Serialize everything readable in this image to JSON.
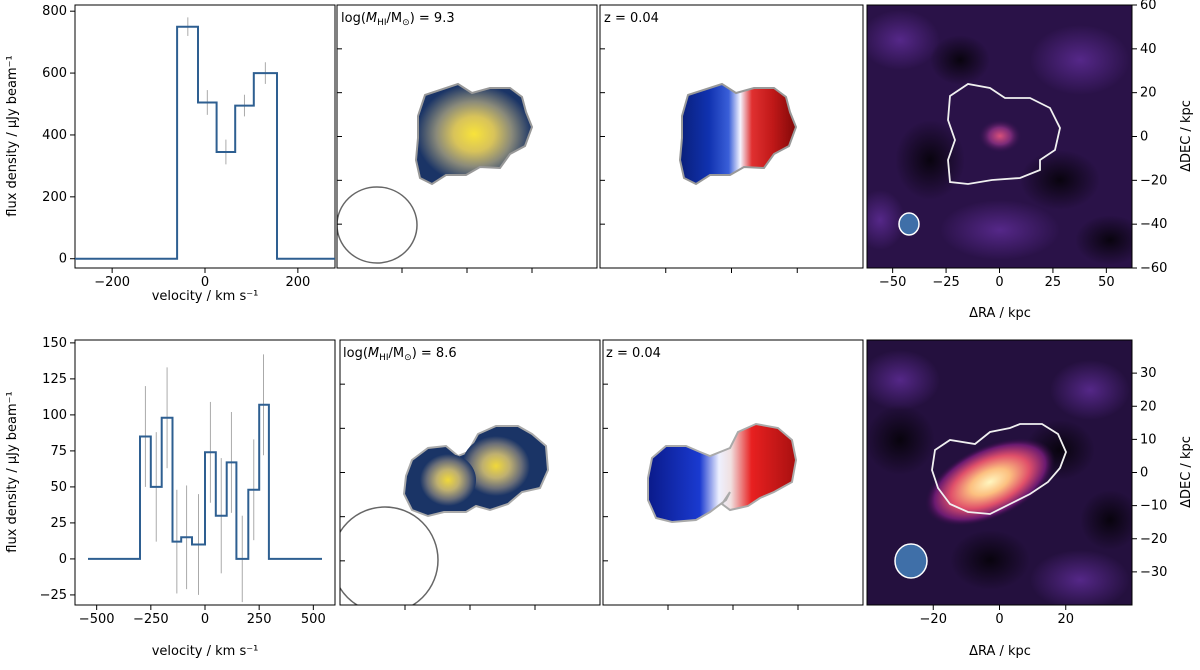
{
  "rows": [
    {
      "spectrum": {
        "type": "line",
        "step": true,
        "xlabel": "velocity / km s⁻¹",
        "ylabel": "flux density / μJy beam⁻¹",
        "xlim": [
          -280,
          280
        ],
        "ylim": [
          -30,
          820
        ],
        "xticks": [
          -200,
          0,
          200
        ],
        "yticks": [
          0,
          200,
          400,
          600,
          800
        ],
        "line_color": "#2e5f91",
        "error_color": "#aaaaaa",
        "x": [
          -280,
          -60,
          -60,
          -15,
          -15,
          25,
          25,
          65,
          65,
          105,
          105,
          155,
          155,
          280
        ],
        "y": [
          0,
          0,
          750,
          750,
          505,
          505,
          345,
          345,
          495,
          495,
          600,
          600,
          0,
          0
        ],
        "errors": [
          {
            "x": -37,
            "y": 750,
            "err": 30
          },
          {
            "x": 5,
            "y": 505,
            "err": 40
          },
          {
            "x": 45,
            "y": 345,
            "err": 40
          },
          {
            "x": 85,
            "y": 495,
            "err": 35
          },
          {
            "x": 130,
            "y": 600,
            "err": 35
          }
        ]
      },
      "moment0_label": "log(Mₕᵢ/M⊙) = 9.3",
      "moment0_parts": {
        "pre": "log(",
        "M": "M",
        "sub": "HI",
        "mid": "/M",
        "sun": "⊙",
        "post": ") = 9.3"
      },
      "moment1_label": "z = 0.04",
      "optical": {
        "xlabel": "ΔRA / kpc",
        "ylabel": "ΔDEC / kpc",
        "xlim": [
          -62,
          62
        ],
        "ylim": [
          -60,
          60
        ],
        "xticks": [
          -50,
          -25,
          0,
          25,
          50
        ],
        "yticks": [
          -60,
          -40,
          -20,
          0,
          20,
          40,
          60
        ]
      }
    },
    {
      "spectrum": {
        "type": "line",
        "step": true,
        "xlabel": "velocity / km s⁻¹",
        "ylabel": "flux density / μJy beam⁻¹",
        "xlim": [
          -600,
          600
        ],
        "ylim": [
          -32,
          152
        ],
        "xticks": [
          -500,
          -250,
          0,
          250,
          500
        ],
        "yticks": [
          -25,
          0,
          25,
          50,
          75,
          100,
          125,
          150
        ],
        "line_color": "#2e5f91",
        "error_color": "#aaaaaa",
        "x": [
          -540,
          -300,
          -300,
          -250,
          -250,
          -200,
          -200,
          -150,
          -150,
          -110,
          -110,
          -60,
          -60,
          0,
          0,
          50,
          50,
          100,
          100,
          145,
          145,
          200,
          200,
          250,
          250,
          295,
          295,
          540
        ],
        "y": [
          0,
          0,
          85,
          85,
          50,
          50,
          98,
          98,
          12,
          12,
          15,
          15,
          10,
          10,
          74,
          74,
          30,
          30,
          67,
          67,
          0,
          0,
          48,
          48,
          107,
          107,
          0,
          0
        ],
        "errors": [
          {
            "x": -275,
            "y": 85,
            "err": 35
          },
          {
            "x": -225,
            "y": 50,
            "err": 38
          },
          {
            "x": -175,
            "y": 98,
            "err": 35
          },
          {
            "x": -130,
            "y": 12,
            "err": 36
          },
          {
            "x": -85,
            "y": 15,
            "err": 36
          },
          {
            "x": -30,
            "y": 10,
            "err": 35
          },
          {
            "x": 25,
            "y": 74,
            "err": 35
          },
          {
            "x": 75,
            "y": 30,
            "err": 40
          },
          {
            "x": 122,
            "y": 67,
            "err": 35
          },
          {
            "x": 172,
            "y": 0,
            "err": 30
          },
          {
            "x": 225,
            "y": 48,
            "err": 35
          },
          {
            "x": 270,
            "y": 107,
            "err": 35
          }
        ]
      },
      "moment0_label": "log(Mₕᵢ/M⊙) = 8.6",
      "moment0_parts": {
        "pre": "log(",
        "M": "M",
        "sub": "HI",
        "mid": "/M",
        "sun": "⊙",
        "post": ") = 8.6"
      },
      "moment1_label": "z = 0.04",
      "optical": {
        "xlabel": "ΔRA / kpc",
        "ylabel": "ΔDEC / kpc",
        "xlim": [
          -40,
          40
        ],
        "ylim": [
          -40,
          40
        ],
        "xticks": [
          -20,
          0,
          20
        ],
        "yticks": [
          -30,
          -20,
          -10,
          0,
          10,
          20,
          30
        ]
      }
    }
  ],
  "colors": {
    "spectrum_line": "#2e5f91",
    "moment0_outer": "#1a3466",
    "moment0_inner": "#f5dc3c",
    "moment1_blue": "#0a1f8a",
    "moment1_red": "#9e0a0a",
    "optical_bg": "#1a0a2e",
    "beam_fill": "#3f6fa8",
    "contour_white": "#ffffff"
  }
}
